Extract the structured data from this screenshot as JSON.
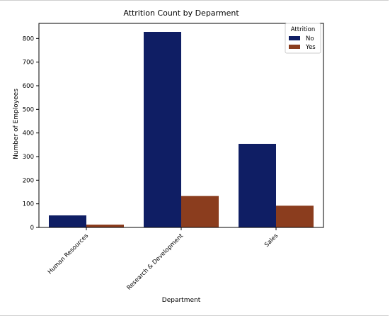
{
  "chart_data": {
    "type": "bar",
    "title": "Attrition Count by Deparment",
    "xlabel": "Department",
    "ylabel": "Number of Employees",
    "categories": [
      "Human Resources",
      "Research & Development",
      "Sales"
    ],
    "series": [
      {
        "name": "No",
        "values": [
          51,
          828,
          354
        ],
        "color": "#0f1e64"
      },
      {
        "name": "Yes",
        "values": [
          12,
          133,
          92
        ],
        "color": "#8b3d1e"
      }
    ],
    "ylim": [
      0,
      864
    ],
    "yticks": [
      0,
      100,
      200,
      300,
      400,
      500,
      600,
      700,
      800
    ],
    "grid": false,
    "legend": {
      "title": "Attrition",
      "placement": "top-right"
    }
  }
}
